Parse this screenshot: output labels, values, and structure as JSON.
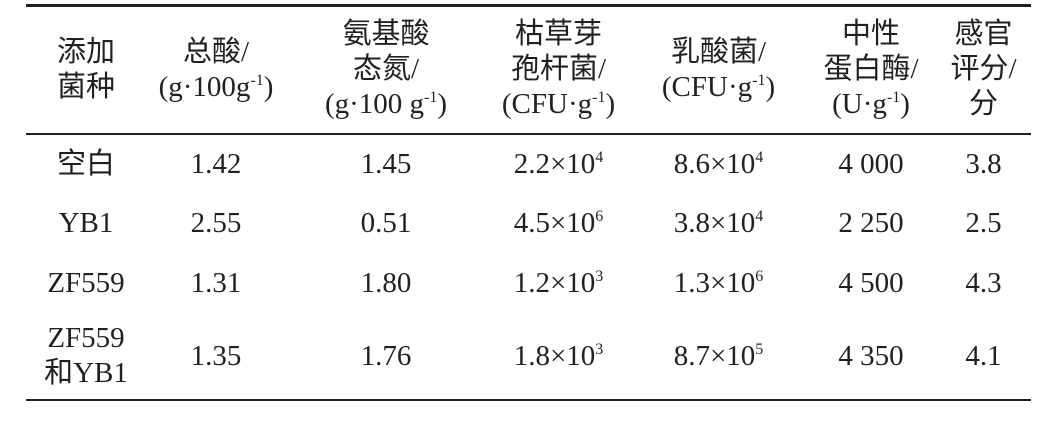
{
  "table": {
    "headers": [
      [
        "添加",
        "菌种"
      ],
      [
        "总酸/",
        {
          "text": "(g·100g",
          "sup": "-1",
          "after": ")"
        }
      ],
      [
        "氨基酸",
        "态氮/",
        {
          "text": "(g·100 g",
          "sup": "-1",
          "after": ")"
        }
      ],
      [
        "枯草芽",
        "孢杆菌/",
        {
          "text": "(CFU·g",
          "sup": "-1",
          "after": ")"
        }
      ],
      [
        "乳酸菌/",
        {
          "text": "(CFU·g",
          "sup": "-1",
          "after": ")"
        }
      ],
      [
        "中性",
        "蛋白酶/",
        {
          "text": "(U·g",
          "sup": "-1",
          "after": ")"
        }
      ],
      [
        "感官",
        "评分/",
        "分"
      ]
    ],
    "rows": [
      [
        [
          "空白"
        ],
        [
          "1.42"
        ],
        [
          "1.45"
        ],
        [
          {
            "text": "2.2×10",
            "sup": "4"
          }
        ],
        [
          {
            "text": "8.6×10",
            "sup": "4"
          }
        ],
        [
          "4 000"
        ],
        [
          "3.8"
        ]
      ],
      [
        [
          "YB1"
        ],
        [
          "2.55"
        ],
        [
          "0.51"
        ],
        [
          {
            "text": "4.5×10",
            "sup": "6"
          }
        ],
        [
          {
            "text": "3.8×10",
            "sup": "4"
          }
        ],
        [
          "2 250"
        ],
        [
          "2.5"
        ]
      ],
      [
        [
          "ZF559"
        ],
        [
          "1.31"
        ],
        [
          "1.80"
        ],
        [
          {
            "text": "1.2×10",
            "sup": "3"
          }
        ],
        [
          {
            "text": "1.3×10",
            "sup": "6"
          }
        ],
        [
          "4 500"
        ],
        [
          "4.3"
        ]
      ],
      [
        [
          "ZF559",
          "和YB1"
        ],
        [
          "1.35"
        ],
        [
          "1.76"
        ],
        [
          {
            "text": "1.8×10",
            "sup": "3"
          }
        ],
        [
          {
            "text": "8.7×10",
            "sup": "5"
          }
        ],
        [
          "4 350"
        ],
        [
          "4.1"
        ]
      ]
    ]
  }
}
